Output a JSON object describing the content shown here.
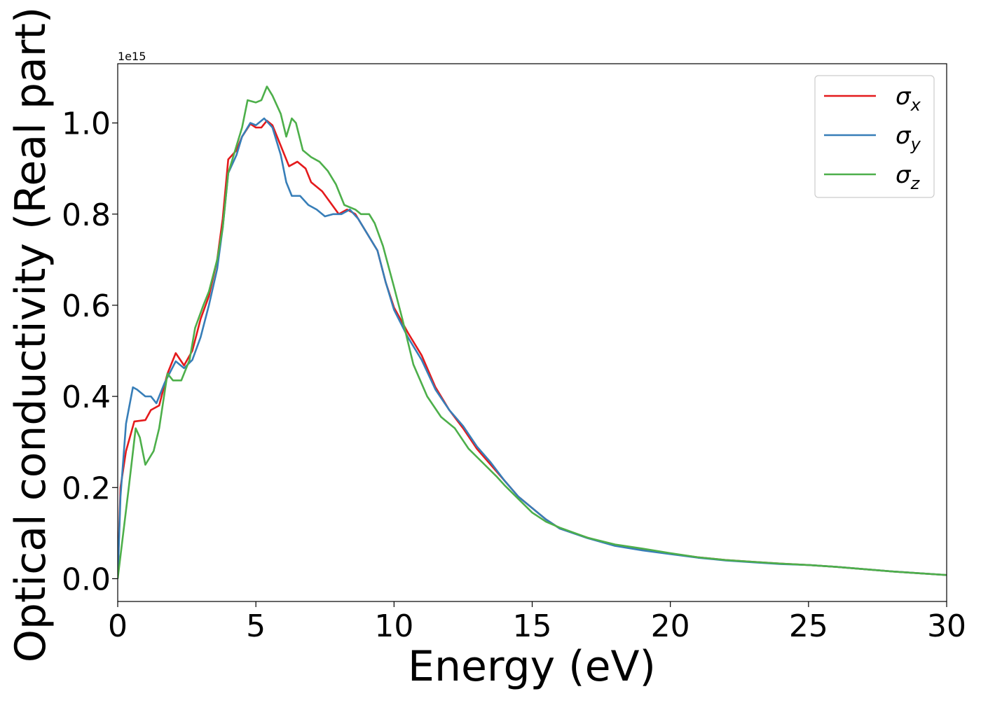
{
  "chart_data": {
    "type": "line",
    "title": "",
    "xlabel": "Energy (eV)",
    "ylabel": "Optical conductivity (Real part)",
    "offset_text": "1e15",
    "xlim": [
      0,
      30
    ],
    "ylim": [
      -0.05,
      1.13
    ],
    "xticks": [
      0,
      5,
      10,
      15,
      20,
      25,
      30
    ],
    "xtick_labels": [
      "0",
      "5",
      "10",
      "15",
      "20",
      "25",
      "30"
    ],
    "yticks": [
      0.0,
      0.2,
      0.4,
      0.6,
      0.8,
      1.0
    ],
    "ytick_labels": [
      "0.0",
      "0.2",
      "0.4",
      "0.6",
      "0.8",
      "1.0"
    ],
    "grid": false,
    "legend_position": "top-right",
    "series": [
      {
        "name": "σx",
        "symbol": "σ",
        "subscript": "x",
        "color": "#e41a1c",
        "points": [
          [
            0,
            0
          ],
          [
            0.1,
            0.2
          ],
          [
            0.3,
            0.28
          ],
          [
            0.6,
            0.345
          ],
          [
            1.0,
            0.348
          ],
          [
            1.2,
            0.37
          ],
          [
            1.5,
            0.38
          ],
          [
            1.8,
            0.45
          ],
          [
            2.1,
            0.495
          ],
          [
            2.4,
            0.468
          ],
          [
            2.7,
            0.5
          ],
          [
            3.0,
            0.57
          ],
          [
            3.3,
            0.62
          ],
          [
            3.6,
            0.7
          ],
          [
            3.8,
            0.79
          ],
          [
            4.0,
            0.92
          ],
          [
            4.3,
            0.94
          ],
          [
            4.5,
            0.97
          ],
          [
            4.8,
            0.998
          ],
          [
            5.0,
            0.99
          ],
          [
            5.2,
            0.99
          ],
          [
            5.4,
            1.005
          ],
          [
            5.6,
            0.995
          ],
          [
            5.9,
            0.95
          ],
          [
            6.2,
            0.905
          ],
          [
            6.5,
            0.915
          ],
          [
            6.8,
            0.9
          ],
          [
            7.0,
            0.87
          ],
          [
            7.4,
            0.85
          ],
          [
            7.7,
            0.825
          ],
          [
            8.0,
            0.8
          ],
          [
            8.3,
            0.81
          ],
          [
            8.6,
            0.8
          ],
          [
            9.0,
            0.76
          ],
          [
            9.4,
            0.72
          ],
          [
            9.7,
            0.65
          ],
          [
            10.0,
            0.595
          ],
          [
            10.5,
            0.54
          ],
          [
            11.0,
            0.49
          ],
          [
            11.5,
            0.42
          ],
          [
            12.0,
            0.37
          ],
          [
            12.5,
            0.33
          ],
          [
            13.0,
            0.285
          ],
          [
            13.5,
            0.25
          ],
          [
            14.0,
            0.215
          ],
          [
            14.5,
            0.18
          ],
          [
            15.0,
            0.155
          ],
          [
            15.5,
            0.13
          ],
          [
            16.0,
            0.11
          ],
          [
            17.0,
            0.09
          ],
          [
            18.0,
            0.073
          ],
          [
            19.0,
            0.063
          ],
          [
            20.0,
            0.055
          ],
          [
            21.0,
            0.047
          ],
          [
            22.0,
            0.041
          ],
          [
            23.0,
            0.037
          ],
          [
            24.0,
            0.033
          ],
          [
            25.0,
            0.03
          ],
          [
            26.0,
            0.026
          ],
          [
            27.0,
            0.021
          ],
          [
            28.0,
            0.016
          ],
          [
            29.0,
            0.012
          ],
          [
            30.0,
            0.008
          ]
        ]
      },
      {
        "name": "σy",
        "symbol": "σ",
        "subscript": "y",
        "color": "#377eb8",
        "points": [
          [
            0,
            0
          ],
          [
            0.1,
            0.18
          ],
          [
            0.3,
            0.34
          ],
          [
            0.55,
            0.42
          ],
          [
            0.7,
            0.415
          ],
          [
            1.0,
            0.4
          ],
          [
            1.2,
            0.4
          ],
          [
            1.4,
            0.385
          ],
          [
            1.7,
            0.43
          ],
          [
            2.1,
            0.477
          ],
          [
            2.4,
            0.462
          ],
          [
            2.7,
            0.48
          ],
          [
            3.0,
            0.53
          ],
          [
            3.3,
            0.6
          ],
          [
            3.6,
            0.68
          ],
          [
            3.8,
            0.77
          ],
          [
            4.0,
            0.89
          ],
          [
            4.3,
            0.93
          ],
          [
            4.5,
            0.97
          ],
          [
            4.8,
            1.0
          ],
          [
            5.0,
            0.995
          ],
          [
            5.3,
            1.01
          ],
          [
            5.6,
            0.99
          ],
          [
            5.9,
            0.93
          ],
          [
            6.1,
            0.87
          ],
          [
            6.3,
            0.84
          ],
          [
            6.6,
            0.84
          ],
          [
            6.9,
            0.82
          ],
          [
            7.2,
            0.81
          ],
          [
            7.5,
            0.795
          ],
          [
            7.8,
            0.8
          ],
          [
            8.1,
            0.8
          ],
          [
            8.4,
            0.81
          ],
          [
            8.7,
            0.79
          ],
          [
            9.0,
            0.76
          ],
          [
            9.4,
            0.72
          ],
          [
            9.7,
            0.65
          ],
          [
            10.0,
            0.59
          ],
          [
            10.5,
            0.53
          ],
          [
            11.0,
            0.48
          ],
          [
            11.5,
            0.415
          ],
          [
            12.0,
            0.37
          ],
          [
            12.5,
            0.335
          ],
          [
            13.0,
            0.29
          ],
          [
            13.5,
            0.255
          ],
          [
            14.0,
            0.215
          ],
          [
            14.5,
            0.18
          ],
          [
            15.0,
            0.155
          ],
          [
            15.5,
            0.13
          ],
          [
            16.0,
            0.11
          ],
          [
            17.0,
            0.089
          ],
          [
            18.0,
            0.072
          ],
          [
            19.0,
            0.062
          ],
          [
            20.0,
            0.054
          ],
          [
            21.0,
            0.046
          ],
          [
            22.0,
            0.04
          ],
          [
            23.0,
            0.036
          ],
          [
            24.0,
            0.032
          ],
          [
            25.0,
            0.03
          ],
          [
            26.0,
            0.026
          ],
          [
            27.0,
            0.021
          ],
          [
            28.0,
            0.016
          ],
          [
            29.0,
            0.012
          ],
          [
            30.0,
            0.008
          ]
        ]
      },
      {
        "name": "σz",
        "symbol": "σ",
        "subscript": "z",
        "color": "#4daf4a",
        "points": [
          [
            0,
            0
          ],
          [
            0.2,
            0.1
          ],
          [
            0.4,
            0.2
          ],
          [
            0.65,
            0.33
          ],
          [
            0.8,
            0.31
          ],
          [
            1.0,
            0.25
          ],
          [
            1.3,
            0.28
          ],
          [
            1.5,
            0.33
          ],
          [
            1.8,
            0.45
          ],
          [
            2.0,
            0.435
          ],
          [
            2.3,
            0.435
          ],
          [
            2.6,
            0.48
          ],
          [
            2.8,
            0.55
          ],
          [
            3.1,
            0.6
          ],
          [
            3.3,
            0.63
          ],
          [
            3.6,
            0.7
          ],
          [
            3.8,
            0.77
          ],
          [
            4.0,
            0.89
          ],
          [
            4.3,
            0.95
          ],
          [
            4.5,
            0.99
          ],
          [
            4.7,
            1.05
          ],
          [
            5.0,
            1.045
          ],
          [
            5.2,
            1.05
          ],
          [
            5.4,
            1.08
          ],
          [
            5.6,
            1.06
          ],
          [
            5.9,
            1.02
          ],
          [
            6.1,
            0.97
          ],
          [
            6.3,
            1.01
          ],
          [
            6.45,
            1.0
          ],
          [
            6.7,
            0.94
          ],
          [
            7.0,
            0.925
          ],
          [
            7.3,
            0.915
          ],
          [
            7.6,
            0.895
          ],
          [
            7.9,
            0.865
          ],
          [
            8.2,
            0.82
          ],
          [
            8.6,
            0.81
          ],
          [
            8.8,
            0.8
          ],
          [
            9.1,
            0.8
          ],
          [
            9.3,
            0.78
          ],
          [
            9.6,
            0.73
          ],
          [
            10.0,
            0.64
          ],
          [
            10.3,
            0.57
          ],
          [
            10.7,
            0.47
          ],
          [
            11.2,
            0.4
          ],
          [
            11.7,
            0.355
          ],
          [
            12.2,
            0.33
          ],
          [
            12.7,
            0.285
          ],
          [
            13.2,
            0.255
          ],
          [
            13.7,
            0.225
          ],
          [
            14.0,
            0.205
          ],
          [
            14.5,
            0.175
          ],
          [
            15.0,
            0.145
          ],
          [
            15.5,
            0.125
          ],
          [
            16.0,
            0.112
          ],
          [
            17.0,
            0.09
          ],
          [
            18.0,
            0.075
          ],
          [
            19.0,
            0.066
          ],
          [
            20.0,
            0.056
          ],
          [
            21.0,
            0.047
          ],
          [
            22.0,
            0.041
          ],
          [
            23.0,
            0.037
          ],
          [
            24.0,
            0.033
          ],
          [
            25.0,
            0.03
          ],
          [
            26.0,
            0.026
          ],
          [
            27.0,
            0.021
          ],
          [
            28.0,
            0.016
          ],
          [
            29.0,
            0.012
          ],
          [
            30.0,
            0.008
          ]
        ]
      }
    ]
  }
}
